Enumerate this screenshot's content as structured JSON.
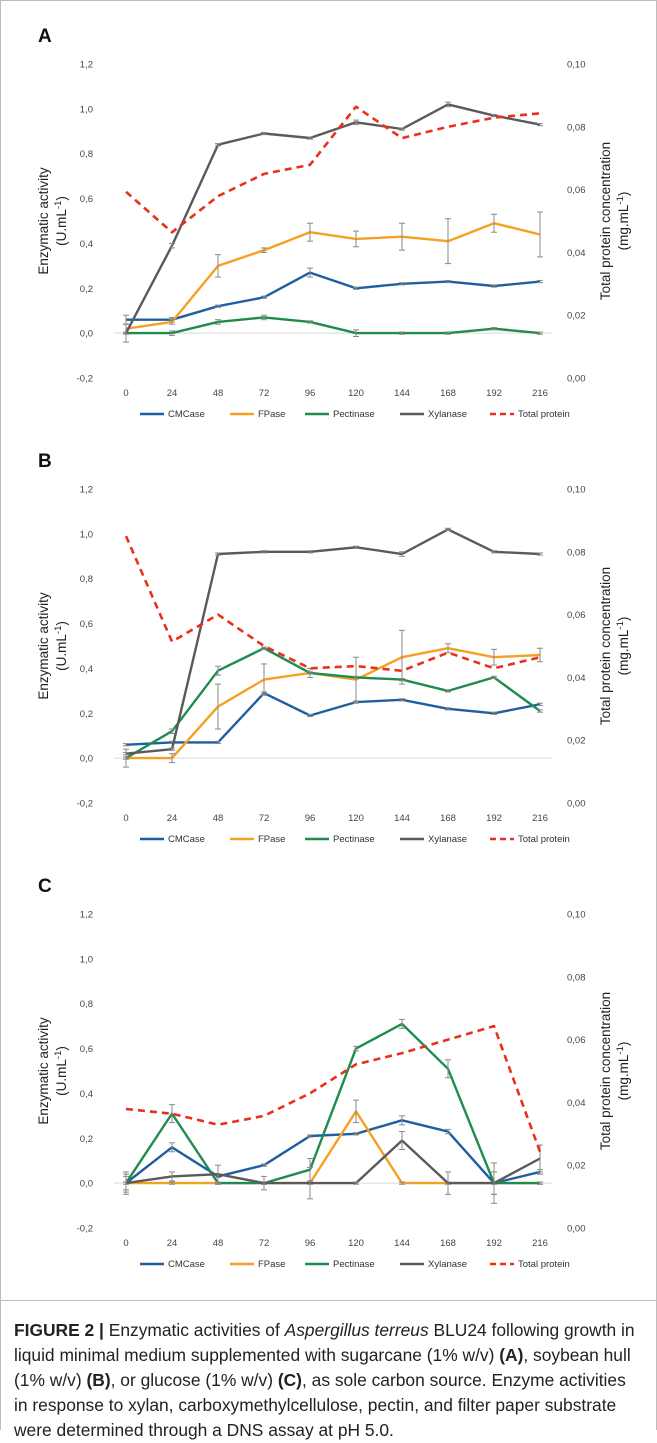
{
  "figure": {
    "caption": {
      "label": "FIGURE 2 |",
      "text_1": " Enzymatic activities of ",
      "organism": "Aspergillus terreus",
      "text_2": " BLU24 following growth in liquid minimal medium supplemented with sugarcane (1% w/v) ",
      "ref_a": "(A)",
      "text_3": ", soybean hull (1% w/v) ",
      "ref_b": "(B)",
      "text_4": ", or glucose (1% w/v) ",
      "ref_c": "(C)",
      "text_5": ", as sole carbon source. Enzyme activities in response to xylan, carboxymethylcellulose, pectin, and filter paper substrate were determined through a DNS assay at pH 5.0."
    }
  },
  "colors": {
    "CMCase": "#1f5fa0",
    "FPase": "#f5a020",
    "Pectinase": "#1e8c4e",
    "Xylanase": "#5a5a5a",
    "Total protein": "#e8311a"
  },
  "chart_data": [
    {
      "panel": "A",
      "type": "line",
      "ylabel": "Enzymatic activity (U.mL-1)",
      "y2label": "Total protein concentration (mg.mL-1)",
      "x": [
        0,
        24,
        48,
        72,
        96,
        120,
        144,
        168,
        192,
        216
      ],
      "x_tick_labels": [
        "0",
        "24",
        "48",
        "72",
        "96",
        "120",
        "144",
        "168",
        "192",
        "216"
      ],
      "ylim": [
        -0.2,
        1.2
      ],
      "y_ticks": [
        "-0,2",
        "0,0",
        "0,2",
        "0,4",
        "0,6",
        "0,8",
        "1,0",
        "1,2"
      ],
      "y2lim": [
        0.0,
        0.1
      ],
      "y2_ticks": [
        "0,00",
        "0,02",
        "0,04",
        "0,06",
        "0,08",
        "0,10"
      ],
      "legend": "bottom",
      "series": [
        {
          "name": "CMCase",
          "axis": "left",
          "values": [
            0.06,
            0.06,
            0.12,
            0.16,
            0.27,
            0.2,
            0.22,
            0.23,
            0.21,
            0.23
          ],
          "err": [
            0.02,
            0.01,
            0.005,
            0.005,
            0.02,
            0.005,
            0.005,
            0.005,
            0.005,
            0.005
          ]
        },
        {
          "name": "FPase",
          "axis": "left",
          "values": [
            0.02,
            0.05,
            0.3,
            0.37,
            0.45,
            0.42,
            0.43,
            0.41,
            0.49,
            0.44
          ],
          "err": [
            0.02,
            0.01,
            0.05,
            0.01,
            0.04,
            0.035,
            0.06,
            0.1,
            0.04,
            0.1
          ]
        },
        {
          "name": "Pectinase",
          "axis": "left",
          "values": [
            0,
            0,
            0.05,
            0.07,
            0.05,
            0,
            0,
            0,
            0.02,
            0
          ],
          "err": [
            0.005,
            0.01,
            0.01,
            0.01,
            0.005,
            0.015,
            0.005,
            0.005,
            0.005,
            0.005
          ]
        },
        {
          "name": "Xylanase",
          "axis": "left",
          "values": [
            0,
            0.39,
            0.84,
            0.89,
            0.87,
            0.94,
            0.91,
            1.02,
            0.97,
            0.93
          ],
          "err": [
            0.04,
            0.01,
            0.005,
            0.005,
            0.005,
            0.01,
            0.005,
            0.01,
            0.005,
            0.005
          ]
        },
        {
          "name": "Total protein",
          "axis": "right",
          "dashed": true,
          "values": [
            0.0593,
            0.0464,
            0.0579,
            0.065,
            0.0679,
            0.0864,
            0.0764,
            0.08,
            0.0829,
            0.0843
          ],
          "err": []
        }
      ]
    },
    {
      "panel": "B",
      "type": "line",
      "ylabel": "Enzymatic activity (U.mL-1)",
      "y2label": "Total protein concentration (mg.mL-1)",
      "x": [
        0,
        24,
        48,
        72,
        96,
        120,
        144,
        168,
        192,
        216
      ],
      "x_tick_labels": [
        "0",
        "24",
        "48",
        "72",
        "96",
        "120",
        "144",
        "168",
        "192",
        "216"
      ],
      "ylim": [
        -0.2,
        1.2
      ],
      "y_ticks": [
        "-0,2",
        "0,0",
        "0,2",
        "0,4",
        "0,6",
        "0,8",
        "1,0",
        "1,2"
      ],
      "y2lim": [
        0.0,
        0.1
      ],
      "y2_ticks": [
        "0,00",
        "0,02",
        "0,04",
        "0,06",
        "0,08",
        "0,10"
      ],
      "legend": "bottom",
      "series": [
        {
          "name": "CMCase",
          "axis": "left",
          "values": [
            0.06,
            0.07,
            0.07,
            0.29,
            0.19,
            0.25,
            0.26,
            0.22,
            0.2,
            0.24
          ],
          "err": [
            0.005,
            0.005,
            0.005,
            0.005,
            0.005,
            0.005,
            0.005,
            0.005,
            0.005,
            0.005
          ]
        },
        {
          "name": "FPase",
          "axis": "left",
          "values": [
            0,
            0,
            0.23,
            0.35,
            0.38,
            0.35,
            0.45,
            0.49,
            0.45,
            0.46
          ],
          "err": [
            0.04,
            0.02,
            0.1,
            0.07,
            0.02,
            0.1,
            0.12,
            0.02,
            0.035,
            0.03
          ]
        },
        {
          "name": "Pectinase",
          "axis": "left",
          "values": [
            0,
            0.12,
            0.39,
            0.49,
            0.38,
            0.36,
            0.35,
            0.3,
            0.36,
            0.21
          ],
          "err": [
            0.005,
            0.01,
            0.02,
            0.005,
            0.005,
            0.005,
            0.005,
            0.005,
            0.005,
            0.005
          ]
        },
        {
          "name": "Xylanase",
          "axis": "left",
          "values": [
            0.02,
            0.04,
            0.91,
            0.92,
            0.92,
            0.94,
            0.91,
            1.02,
            0.92,
            0.91
          ],
          "err": [
            0.005,
            0.005,
            0.005,
            0.005,
            0.005,
            0.005,
            0.01,
            0.005,
            0.005,
            0.005
          ]
        },
        {
          "name": "Total protein",
          "axis": "right",
          "dashed": true,
          "values": [
            0.085,
            0.0514,
            0.06,
            0.05,
            0.0429,
            0.0436,
            0.0421,
            0.0479,
            0.0429,
            0.0464
          ],
          "err": []
        }
      ]
    },
    {
      "panel": "C",
      "type": "line",
      "ylabel": "Enzymatic activity (U.mL-1)",
      "y2label": "Total protein concentration (mg.mL-1)",
      "x": [
        0,
        24,
        48,
        72,
        96,
        120,
        144,
        168,
        192,
        216
      ],
      "x_tick_labels": [
        "0",
        "24",
        "48",
        "72",
        "96",
        "120",
        "144",
        "168",
        "192",
        "216"
      ],
      "ylim": [
        -0.2,
        1.2
      ],
      "y_ticks": [
        "-0,2",
        "0,0",
        "0,2",
        "0,4",
        "0,6",
        "0,8",
        "1,0",
        "1,2"
      ],
      "y2lim": [
        0.0,
        0.1
      ],
      "y2_ticks": [
        "0,00",
        "0,02",
        "0,04",
        "0,06",
        "0,08",
        "0,10"
      ],
      "legend": "bottom",
      "series": [
        {
          "name": "CMCase",
          "axis": "left",
          "values": [
            0,
            0.16,
            0.03,
            0.08,
            0.21,
            0.22,
            0.28,
            0.23,
            0,
            0.05
          ],
          "err": [
            0.03,
            0.02,
            0.005,
            0.005,
            0.005,
            0.005,
            0.02,
            0.01,
            0.05,
            0.01
          ]
        },
        {
          "name": "FPase",
          "axis": "left",
          "values": [
            0,
            0,
            0,
            0,
            0,
            0.32,
            0,
            0,
            0,
            0
          ],
          "err": [
            0.005,
            0.005,
            0.005,
            0.005,
            0.005,
            0.05,
            0.005,
            0.005,
            0.005,
            0.005
          ]
        },
        {
          "name": "Pectinase",
          "axis": "left",
          "values": [
            0,
            0.31,
            0,
            0,
            0.06,
            0.6,
            0.71,
            0.51,
            0,
            0
          ],
          "err": [
            0.05,
            0.04,
            0.005,
            0.005,
            0.05,
            0.01,
            0.02,
            0.04,
            0.05,
            0.005
          ]
        },
        {
          "name": "Xylanase",
          "axis": "left",
          "values": [
            0,
            0.03,
            0.04,
            0,
            0,
            0,
            0.19,
            0,
            0,
            0.11
          ],
          "err": [
            0.04,
            0.02,
            0.04,
            0.03,
            0.07,
            0.005,
            0.04,
            0.05,
            0.09,
            0.06
          ]
        },
        {
          "name": "Total protein",
          "axis": "right",
          "dashed": true,
          "values": [
            0.0379,
            0.0364,
            0.0329,
            0.0357,
            0.0429,
            0.0521,
            0.0557,
            0.06,
            0.0643,
            0.0243
          ],
          "err": []
        }
      ]
    }
  ]
}
